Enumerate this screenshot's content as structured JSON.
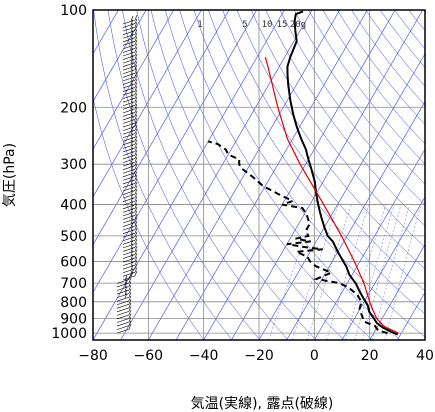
{
  "chart_data": {
    "type": "line",
    "subtype": "skew-t log-p diagram",
    "xlabel": "気温(実線), 露点(破線)",
    "ylabel": "気圧(hPa)",
    "x_ticks": [
      -80,
      -60,
      -40,
      -20,
      0,
      20,
      40
    ],
    "y_ticks": [
      100,
      200,
      300,
      400,
      500,
      600,
      700,
      800,
      900,
      1000
    ],
    "xlim": [
      -80,
      40
    ],
    "ylim": [
      1050,
      100
    ],
    "y_scale": "log",
    "grid": true,
    "mixing_ratio_labels": [
      "1",
      "5",
      "10",
      "15",
      "20g"
    ],
    "colors": {
      "temperature": "#000000",
      "dewpoint": "#000000",
      "parcel": "#e00000",
      "background_lines": "#3344dd",
      "grid": "#888888"
    },
    "series": [
      {
        "style": "solid",
        "points": [
          {
            "p": 1010,
            "t": 29
          },
          {
            "p": 990,
            "t": 26
          },
          {
            "p": 960,
            "t": 22
          },
          {
            "p": 930,
            "t": 19
          },
          {
            "p": 900,
            "t": 17
          },
          {
            "p": 860,
            "t": 14
          },
          {
            "p": 820,
            "t": 12
          },
          {
            "p": 780,
            "t": 9
          },
          {
            "p": 740,
            "t": 6
          },
          {
            "p": 700,
            "t": 3
          },
          {
            "p": 660,
            "t": -1
          },
          {
            "p": 620,
            "t": -4
          },
          {
            "p": 600,
            "t": -6
          },
          {
            "p": 560,
            "t": -10
          },
          {
            "p": 520,
            "t": -14
          },
          {
            "p": 500,
            "t": -17
          },
          {
            "p": 470,
            "t": -20
          },
          {
            "p": 440,
            "t": -23
          },
          {
            "p": 420,
            "t": -25
          },
          {
            "p": 400,
            "t": -27
          },
          {
            "p": 370,
            "t": -30
          },
          {
            "p": 340,
            "t": -33
          },
          {
            "p": 310,
            "t": -37
          },
          {
            "p": 290,
            "t": -40
          },
          {
            "p": 270,
            "t": -43
          },
          {
            "p": 250,
            "t": -47
          },
          {
            "p": 230,
            "t": -51
          },
          {
            "p": 210,
            "t": -55
          },
          {
            "p": 190,
            "t": -59
          },
          {
            "p": 170,
            "t": -63
          },
          {
            "p": 160,
            "t": -65
          },
          {
            "p": 150,
            "t": -67
          },
          {
            "p": 140,
            "t": -68
          },
          {
            "p": 125,
            "t": -69
          },
          {
            "p": 115,
            "t": -72
          },
          {
            "p": 108,
            "t": -74
          },
          {
            "p": 103,
            "t": -75
          },
          {
            "p": 101,
            "t": -73
          }
        ]
      },
      {
        "style": "dashed",
        "points": [
          {
            "p": 1000,
            "t": 25
          },
          {
            "p": 980,
            "t": 21
          },
          {
            "p": 950,
            "t": 19
          },
          {
            "p": 920,
            "t": 14
          },
          {
            "p": 880,
            "t": 12
          },
          {
            "p": 850,
            "t": 10
          },
          {
            "p": 800,
            "t": 9
          },
          {
            "p": 760,
            "t": 6
          },
          {
            "p": 720,
            "t": 1
          },
          {
            "p": 700,
            "t": -3
          },
          {
            "p": 680,
            "t": -12
          },
          {
            "p": 650,
            "t": -8
          },
          {
            "p": 620,
            "t": -15
          },
          {
            "p": 600,
            "t": -18
          },
          {
            "p": 580,
            "t": -20
          },
          {
            "p": 560,
            "t": -25
          },
          {
            "p": 550,
            "t": -16
          },
          {
            "p": 540,
            "t": -24
          },
          {
            "p": 530,
            "t": -30
          },
          {
            "p": 520,
            "t": -22
          },
          {
            "p": 510,
            "t": -28
          },
          {
            "p": 500,
            "t": -24
          },
          {
            "p": 480,
            "t": -26
          },
          {
            "p": 460,
            "t": -26
          },
          {
            "p": 430,
            "t": -29
          },
          {
            "p": 410,
            "t": -32
          },
          {
            "p": 400,
            "t": -40
          },
          {
            "p": 390,
            "t": -37
          },
          {
            "p": 370,
            "t": -44
          },
          {
            "p": 350,
            "t": -51
          },
          {
            "p": 330,
            "t": -56
          },
          {
            "p": 310,
            "t": -62
          },
          {
            "p": 300,
            "t": -64
          },
          {
            "p": 290,
            "t": -65
          },
          {
            "p": 280,
            "t": -70
          },
          {
            "p": 270,
            "t": -72
          },
          {
            "p": 260,
            "t": -76
          },
          {
            "p": 255,
            "t": -80
          }
        ]
      },
      {
        "style": "parcel",
        "points": [
          {
            "p": 1000,
            "t": 29
          },
          {
            "p": 950,
            "t": 22
          },
          {
            "p": 900,
            "t": 18
          },
          {
            "p": 850,
            "t": 15
          },
          {
            "p": 800,
            "t": 12
          },
          {
            "p": 700,
            "t": 6
          },
          {
            "p": 600,
            "t": -2
          },
          {
            "p": 500,
            "t": -12
          },
          {
            "p": 400,
            "t": -25
          },
          {
            "p": 300,
            "t": -42
          },
          {
            "p": 250,
            "t": -52
          },
          {
            "p": 200,
            "t": -62
          },
          {
            "p": 150,
            "t": -74
          },
          {
            "p": 140,
            "t": -77
          }
        ]
      }
    ]
  }
}
